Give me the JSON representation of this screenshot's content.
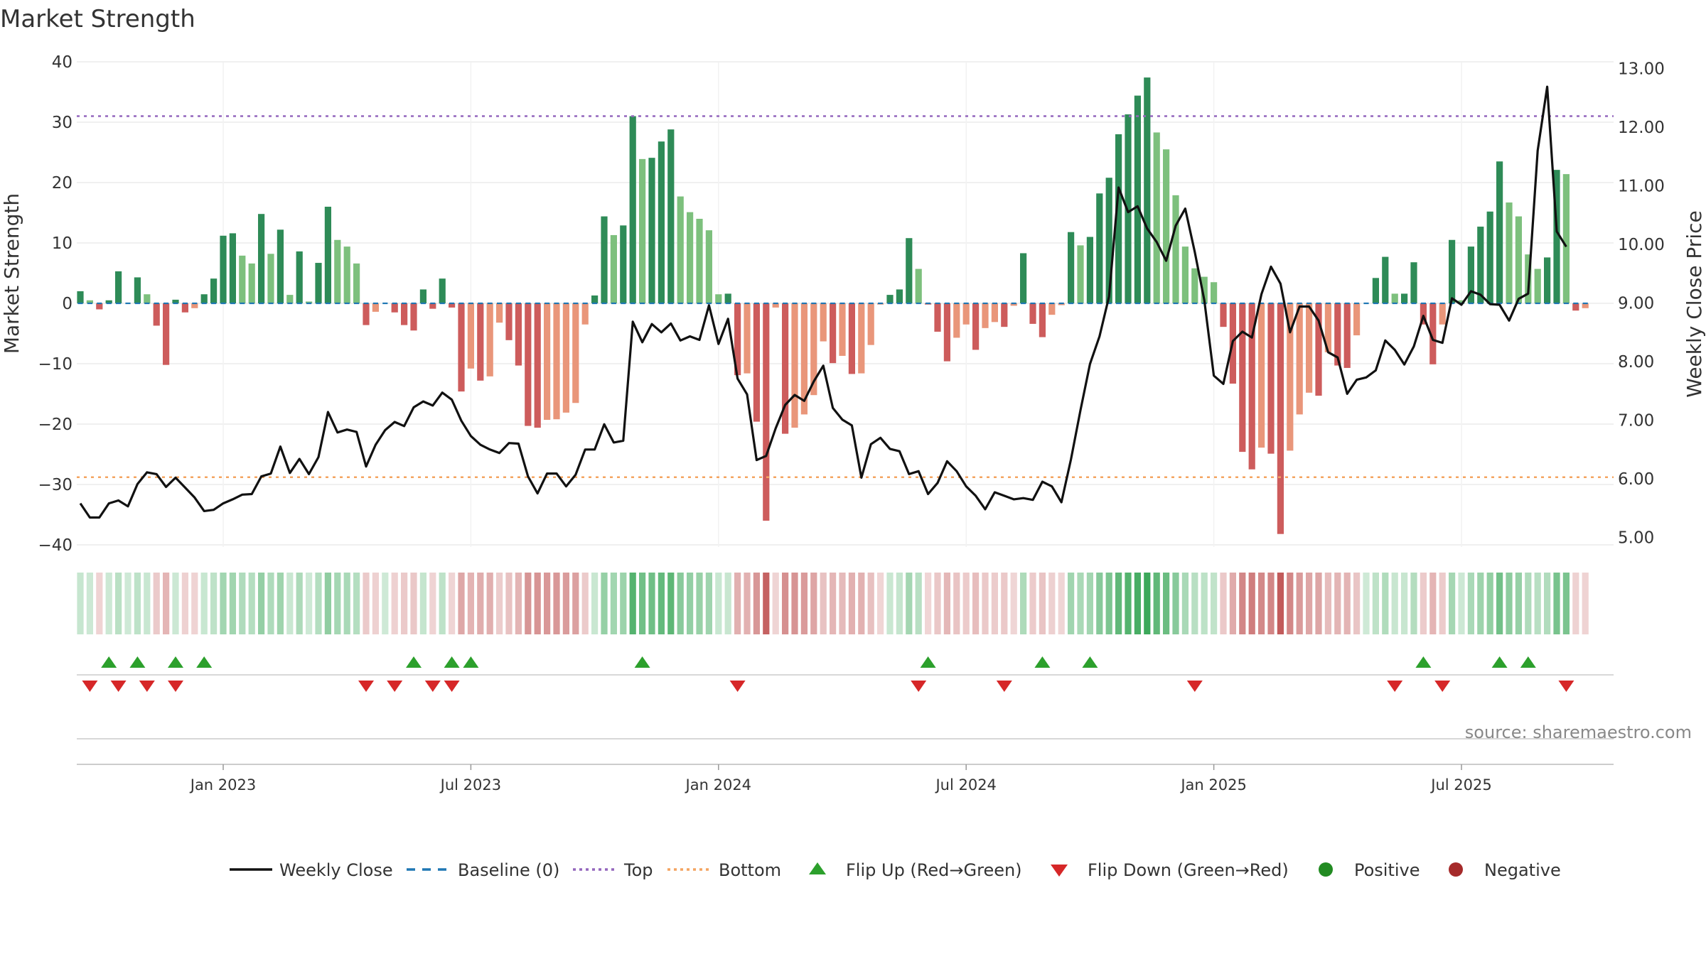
{
  "chart_data": {
    "type": "bar",
    "title": "Market Strength",
    "ylabel": "Market Strength",
    "ylabel_right": "Weekly Close Price",
    "ylim": [
      -40,
      40
    ],
    "ylim_right": [
      5.0,
      13.0
    ],
    "yticks": [
      "40",
      "30",
      "20",
      "10",
      "0",
      "−10",
      "−20",
      "−30",
      "−40"
    ],
    "yticks_right": [
      "13.00",
      "12.00",
      "11.00",
      "10.00",
      "9.00",
      "8.00",
      "7.00",
      "6.00",
      "5.00"
    ],
    "top_level": 31,
    "bottom_level": -28.8,
    "x_tick_labels": [
      "Jan 2023",
      "Jul 2023",
      "Jan 2024",
      "Jul 2024",
      "Jan 2025",
      "Jul 2025"
    ],
    "x_tick_index": [
      15,
      41,
      67,
      93,
      119,
      145
    ],
    "series": [
      {
        "name": "Market Strength",
        "values": [
          2,
          0.5,
          -1,
          0.5,
          5.3,
          0,
          4.3,
          1.5,
          -3.7,
          -10.2,
          0.6,
          -1.5,
          -0.8,
          1.5,
          4.1,
          11.2,
          11.6,
          7.9,
          6.6,
          14.8,
          8.2,
          12.2,
          1.4,
          8.6,
          0.3,
          6.7,
          16,
          10.5,
          9.4,
          6.6,
          -3.6,
          -1.4,
          0,
          -1.5,
          -3.6,
          -4.5,
          2.3,
          -0.9,
          4.1,
          -0.7,
          -14.6,
          -10.8,
          -12.8,
          -12.1,
          -3.2,
          -6.1,
          -10.3,
          -20.3,
          -20.6,
          -19.3,
          -19.2,
          -18.1,
          -16.5,
          -3.5,
          1.3,
          14.4,
          11.3,
          12.9,
          31,
          23.9,
          24.1,
          26.8,
          28.8,
          17.7,
          15.1,
          14,
          12.1,
          1.5,
          1.6,
          -11.9,
          -11.6,
          -19.6,
          -36,
          -0.7,
          -21.6,
          -20.6,
          -18.4,
          -15.2,
          -6.3,
          -9.9,
          -8.7,
          -11.7,
          -11.6,
          -6.9,
          -0.2,
          1.4,
          2.3,
          10.8,
          5.7,
          -0.2,
          -4.7,
          -9.6,
          -5.7,
          -3.5,
          -7.7,
          -4.1,
          -3.1,
          -3.9,
          -0.4,
          8.3,
          -3.4,
          -5.6,
          -1.9,
          -0.3,
          11.8,
          9.6,
          11,
          18.2,
          20.8,
          28,
          31.3,
          34.4,
          37.4,
          28.3,
          25.5,
          17.9,
          9.4,
          5.8,
          4.4,
          3.5,
          -3.9,
          -13.3,
          -24.6,
          -27.5,
          -23.9,
          -24.9,
          -38.2,
          -24.4,
          -18.4,
          -14.8,
          -15.3,
          -8.1,
          -10.3,
          -10.7,
          -5.3,
          0,
          4.2,
          7.7,
          1.6,
          1.6,
          6.8,
          -3.5,
          -10.1,
          -3.5,
          10.5,
          0.5,
          9.4,
          12.7,
          15.2,
          23.5,
          16.7,
          14.4,
          8.1,
          5.7,
          7.6,
          22.1,
          21.4,
          -1.2,
          -0.8
        ]
      },
      {
        "name": "Weekly Close",
        "values": [
          5.58,
          5.34,
          5.34,
          5.58,
          5.63,
          5.53,
          5.91,
          6.11,
          6.08,
          5.86,
          6.02,
          5.85,
          5.68,
          5.45,
          5.47,
          5.58,
          5.65,
          5.73,
          5.74,
          6.04,
          6.09,
          6.55,
          6.1,
          6.34,
          6.08,
          6.37,
          7.14,
          6.79,
          6.84,
          6.8,
          6.21,
          6.58,
          6.83,
          6.97,
          6.9,
          7.22,
          7.32,
          7.25,
          7.47,
          7.35,
          6.99,
          6.73,
          6.58,
          6.5,
          6.44,
          6.61,
          6.6,
          6.04,
          5.75,
          6.09,
          6.09,
          5.87,
          6.07,
          6.5,
          6.5,
          6.93,
          6.62,
          6.65,
          8.68,
          8.33,
          8.64,
          8.5,
          8.65,
          8.36,
          8.43,
          8.37,
          8.96,
          8.3,
          8.73,
          7.71,
          7.44,
          6.32,
          6.39,
          6.86,
          7.26,
          7.43,
          7.33,
          7.66,
          7.93,
          7.21,
          7.01,
          6.91,
          6.02,
          6.59,
          6.7,
          6.51,
          6.47,
          6.08,
          6.13,
          5.74,
          5.93,
          6.3,
          6.13,
          5.87,
          5.71,
          5.48,
          5.77,
          5.71,
          5.65,
          5.67,
          5.64,
          5.95,
          5.87,
          5.6,
          6.33,
          7.17,
          7.96,
          8.43,
          9.11,
          10.97,
          10.55,
          10.65,
          10.27,
          10.04,
          9.72,
          10.32,
          10.61,
          9.87,
          9.05,
          7.76,
          7.62,
          8.35,
          8.51,
          8.41,
          9.15,
          9.62,
          9.33,
          8.5,
          8.94,
          8.94,
          8.7,
          8.16,
          8.07,
          7.45,
          7.69,
          7.73,
          7.85,
          8.36,
          8.2,
          7.95,
          8.26,
          8.78,
          8.37,
          8.32,
          9.08,
          8.97,
          9.2,
          9.14,
          8.98,
          8.97,
          8.7,
          9.07,
          9.16,
          11.6,
          12.69,
          10.22,
          9.96
        ]
      }
    ],
    "strip_note": "color strip mirrors Market Strength: green shades positive, red shades negative",
    "flip_up_index": [
      3,
      6,
      10,
      13,
      35,
      39,
      41,
      59,
      89,
      101,
      106,
      141,
      149,
      152
    ],
    "flip_down_index": [
      1,
      4,
      7,
      10,
      30,
      33,
      37,
      39,
      69,
      88,
      97,
      117,
      138,
      143,
      156
    ],
    "legend": [
      "Weekly Close",
      "Baseline (0)",
      "Top",
      "Bottom",
      "Flip Up (Red→Green)",
      "Flip Down (Green→Red)",
      "Positive",
      "Negative"
    ],
    "legend_position": "bottom",
    "colors": {
      "pos_strong": "#2e8b57",
      "pos_light": "#7dc07d",
      "neg_strong": "#cd5c5c",
      "neg_light": "#e9967a",
      "line": "#111111",
      "baseline": "#1f77b4",
      "top": "#9467bd",
      "bottom": "#f4a460",
      "flip_up": "#2ca02c",
      "flip_down": "#d62728",
      "positive_marker": "#228b22",
      "negative_marker": "#a52a2a"
    },
    "source": "source: sharemaestro.com"
  }
}
